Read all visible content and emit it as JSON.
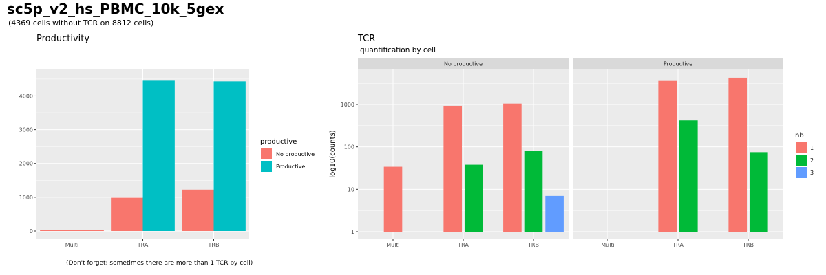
{
  "title": "sc5p_v2_hs_PBMC_10k_5gex",
  "subtitle": "(4369 cells without TCR on 8812 cells)",
  "footnote": "(Don't forget: sometimes there are more than 1  TCR  by cell)",
  "colors": {
    "panel_bg": "#EBEBEB",
    "grid_major": "#FFFFFF",
    "strip_bg": "#D9D9D9",
    "salmon": "#F8766D",
    "cyan": "#00BFC4",
    "green": "#00BA38",
    "blue": "#619CFF"
  },
  "chart_data": [
    {
      "type": "bar",
      "title": "Productivity",
      "categories": [
        "Multi",
        "TRA",
        "TRB"
      ],
      "series": [
        {
          "name": "No productive",
          "color": "#F8766D",
          "values": [
            30,
            985,
            1225
          ]
        },
        {
          "name": "Productive",
          "color": "#00BFC4",
          "values": [
            null,
            4450,
            4430
          ]
        }
      ],
      "ylim": [
        0,
        4600
      ],
      "yticks": [
        "0",
        "1000",
        "2000",
        "3000",
        "4000"
      ],
      "legend": {
        "title": "productive",
        "position": "right"
      },
      "grid": true
    },
    {
      "type": "bar",
      "title": "TCR",
      "subtitle": "quantification by cell",
      "ylabel": "log10(counts)",
      "yscale": "log",
      "yticks": [
        "1",
        "10",
        "100",
        "1000"
      ],
      "ylim": [
        0.85,
        7500
      ],
      "categories": [
        "Multi",
        "TRA",
        "TRB"
      ],
      "facets": [
        {
          "label": "No productive",
          "series": [
            {
              "name": "1",
              "color": "#F8766D",
              "values": [
                34,
                930,
                1050
              ]
            },
            {
              "name": "2",
              "color": "#00BA38",
              "values": [
                null,
                38,
                80
              ]
            },
            {
              "name": "3",
              "color": "#619CFF",
              "values": [
                null,
                null,
                7
              ]
            }
          ]
        },
        {
          "label": "Productive",
          "series": [
            {
              "name": "1",
              "color": "#F8766D",
              "values": [
                null,
                3600,
                4300
              ]
            },
            {
              "name": "2",
              "color": "#00BA38",
              "values": [
                null,
                420,
                75
              ]
            },
            {
              "name": "3",
              "color": "#619CFF",
              "values": [
                null,
                null,
                null
              ]
            }
          ]
        }
      ],
      "legend": {
        "title": "nb",
        "position": "right"
      },
      "grid": true
    }
  ]
}
